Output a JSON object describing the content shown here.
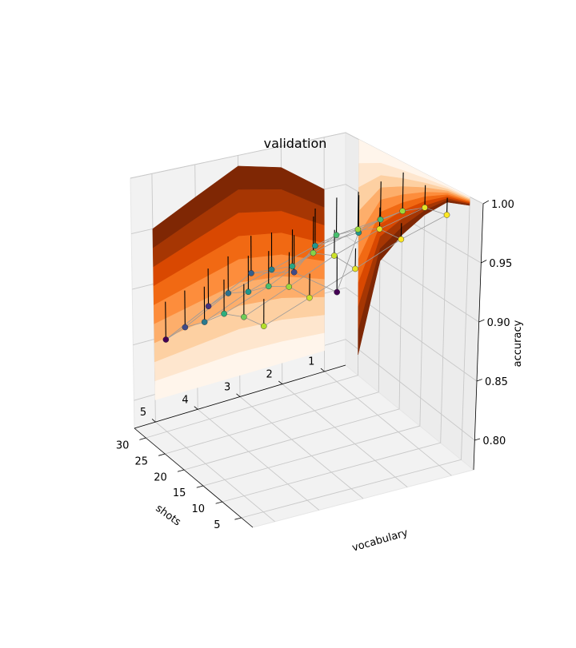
{
  "chart_data": {
    "type": "surface3d",
    "title": "validation",
    "xlabel": "shots",
    "ylabel": "vocabulary",
    "zlabel": "accuracy",
    "x_ticks": [
      "1",
      "2",
      "3",
      "4",
      "5"
    ],
    "y_ticks": [
      "5",
      "10",
      "15",
      "20",
      "25",
      "30"
    ],
    "z_ticks": [
      "0.80",
      "0.85",
      "0.90",
      "0.95",
      "1.00"
    ],
    "xlim": [
      0.5,
      5.5
    ],
    "ylim": [
      2,
      33
    ],
    "zlim": [
      0.775,
      1.0
    ],
    "shots": [
      1,
      2,
      3,
      4,
      5
    ],
    "vocabulary": [
      5,
      10,
      15,
      20,
      25,
      30
    ],
    "accuracy": [
      [
        0.995,
        0.99,
        0.975,
        0.955,
        0.93,
        0.86
      ],
      [
        0.995,
        0.99,
        0.975,
        0.955,
        0.93,
        0.89
      ],
      [
        0.99,
        0.985,
        0.97,
        0.94,
        0.92,
        0.9
      ],
      [
        0.985,
        0.975,
        0.955,
        0.93,
        0.91,
        0.88
      ],
      [
        0.98,
        0.965,
        0.945,
        0.915,
        0.89,
        0.86
      ]
    ],
    "colormap_points": "viridis",
    "colormap_surface": "Oranges"
  }
}
